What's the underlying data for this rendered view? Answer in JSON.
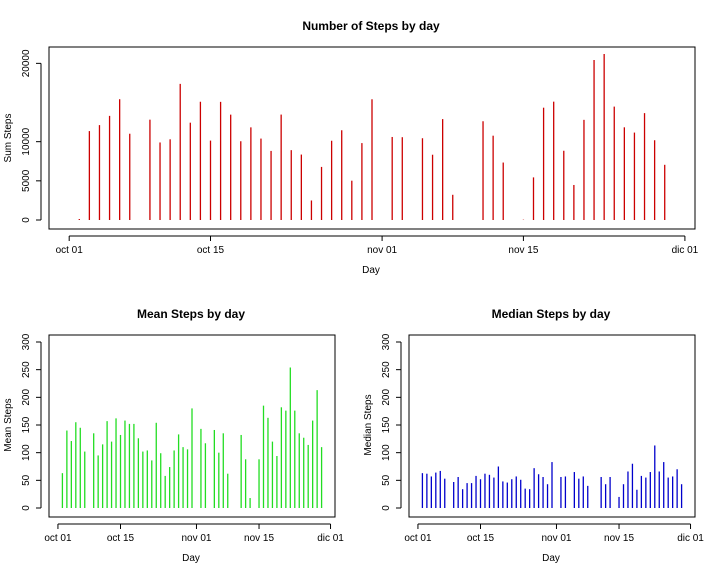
{
  "chart_data": [
    {
      "type": "bar",
      "title": "Number of Steps by day",
      "xlabel": "Day",
      "ylabel": "Sum Steps",
      "color": "#cc0000",
      "x_ticks": [
        "oct 01",
        "oct 15",
        "nov 01",
        "nov 15",
        "dic 01"
      ],
      "y_ticks": [
        0,
        5000,
        10000,
        20000
      ],
      "ylim": [
        0,
        21194
      ],
      "x": [
        "2012-10-02",
        "2012-10-03",
        "2012-10-04",
        "2012-10-05",
        "2012-10-06",
        "2012-10-07",
        "2012-10-09",
        "2012-10-10",
        "2012-10-11",
        "2012-10-12",
        "2012-10-13",
        "2012-10-14",
        "2012-10-15",
        "2012-10-16",
        "2012-10-17",
        "2012-10-18",
        "2012-10-19",
        "2012-10-20",
        "2012-10-21",
        "2012-10-22",
        "2012-10-23",
        "2012-10-24",
        "2012-10-25",
        "2012-10-26",
        "2012-10-27",
        "2012-10-28",
        "2012-10-29",
        "2012-10-30",
        "2012-10-31",
        "2012-11-02",
        "2012-11-03",
        "2012-11-05",
        "2012-11-06",
        "2012-11-07",
        "2012-11-08",
        "2012-11-11",
        "2012-11-12",
        "2012-11-13",
        "2012-11-15",
        "2012-11-16",
        "2012-11-17",
        "2012-11-18",
        "2012-11-19",
        "2012-11-20",
        "2012-11-21",
        "2012-11-22",
        "2012-11-23",
        "2012-11-24",
        "2012-11-25",
        "2012-11-26",
        "2012-11-27",
        "2012-11-28",
        "2012-11-29"
      ],
      "values": [
        126,
        11352,
        12116,
        13294,
        15420,
        11015,
        12811,
        9900,
        10304,
        17382,
        12426,
        15098,
        10139,
        15084,
        13452,
        10056,
        11829,
        10395,
        8821,
        13460,
        8918,
        8355,
        2492,
        6778,
        10119,
        11458,
        5018,
        9819,
        15414,
        10600,
        10571,
        10439,
        8334,
        12883,
        3219,
        12608,
        10765,
        7336,
        41,
        5441,
        14339,
        15110,
        8841,
        4472,
        12787,
        20427,
        21194,
        14478,
        11834,
        11162,
        13646,
        10183,
        7047
      ]
    },
    {
      "type": "bar",
      "title": "Mean Steps by day",
      "xlabel": "Day",
      "ylabel": "Mean Steps",
      "color": "#22dd22",
      "x_ticks": [
        "oct 01",
        "oct 15",
        "nov 01",
        "nov 15",
        "dic 01"
      ],
      "y_ticks": [
        0,
        50,
        100,
        150,
        200,
        250,
        300
      ],
      "ylim": [
        0,
        300
      ],
      "x": [
        "2012-10-02",
        "2012-10-03",
        "2012-10-04",
        "2012-10-05",
        "2012-10-06",
        "2012-10-07",
        "2012-10-09",
        "2012-10-10",
        "2012-10-11",
        "2012-10-12",
        "2012-10-13",
        "2012-10-14",
        "2012-10-15",
        "2012-10-16",
        "2012-10-17",
        "2012-10-18",
        "2012-10-19",
        "2012-10-20",
        "2012-10-21",
        "2012-10-22",
        "2012-10-23",
        "2012-10-24",
        "2012-10-25",
        "2012-10-26",
        "2012-10-27",
        "2012-10-28",
        "2012-10-29",
        "2012-10-30",
        "2012-10-31",
        "2012-11-02",
        "2012-11-03",
        "2012-11-05",
        "2012-11-06",
        "2012-11-07",
        "2012-11-08",
        "2012-11-11",
        "2012-11-12",
        "2012-11-13",
        "2012-11-15",
        "2012-11-16",
        "2012-11-17",
        "2012-11-18",
        "2012-11-19",
        "2012-11-20",
        "2012-11-21",
        "2012-11-22",
        "2012-11-23",
        "2012-11-24",
        "2012-11-25",
        "2012-11-26",
        "2012-11-27",
        "2012-11-28",
        "2012-11-29"
      ],
      "values": [
        63,
        140,
        121,
        155,
        145,
        102,
        135,
        95,
        115,
        157,
        120,
        162,
        132,
        158,
        152,
        152,
        126,
        102,
        104,
        86,
        154,
        99,
        58,
        74,
        104,
        133,
        110,
        106,
        180,
        143,
        117,
        141,
        100,
        135,
        62,
        132,
        88,
        18,
        88,
        185,
        163,
        120,
        94,
        182,
        176,
        254,
        176,
        135,
        127,
        114,
        158,
        213,
        110
      ]
    },
    {
      "type": "bar",
      "title": "Median Steps by day",
      "xlabel": "Day",
      "ylabel": "Median Steps",
      "color": "#0000cc",
      "x_ticks": [
        "oct 01",
        "oct 15",
        "nov 01",
        "nov 15",
        "dic 01"
      ],
      "y_ticks": [
        0,
        50,
        100,
        150,
        200,
        250,
        300
      ],
      "ylim": [
        0,
        300
      ],
      "x": [
        "2012-10-02",
        "2012-10-03",
        "2012-10-04",
        "2012-10-05",
        "2012-10-06",
        "2012-10-07",
        "2012-10-09",
        "2012-10-10",
        "2012-10-11",
        "2012-10-12",
        "2012-10-13",
        "2012-10-14",
        "2012-10-15",
        "2012-10-16",
        "2012-10-17",
        "2012-10-18",
        "2012-10-19",
        "2012-10-20",
        "2012-10-21",
        "2012-10-22",
        "2012-10-23",
        "2012-10-24",
        "2012-10-25",
        "2012-10-26",
        "2012-10-27",
        "2012-10-28",
        "2012-10-29",
        "2012-10-30",
        "2012-10-31",
        "2012-11-02",
        "2012-11-03",
        "2012-11-05",
        "2012-11-06",
        "2012-11-07",
        "2012-11-08",
        "2012-11-11",
        "2012-11-12",
        "2012-11-13",
        "2012-11-15",
        "2012-11-16",
        "2012-11-17",
        "2012-11-18",
        "2012-11-19",
        "2012-11-20",
        "2012-11-21",
        "2012-11-22",
        "2012-11-23",
        "2012-11-24",
        "2012-11-25",
        "2012-11-26",
        "2012-11-27",
        "2012-11-28",
        "2012-11-29"
      ],
      "values": [
        63,
        62,
        57,
        64,
        67,
        53,
        47,
        56,
        34,
        45,
        45,
        58,
        52,
        62,
        60,
        55,
        75,
        48,
        46,
        52,
        57,
        51,
        35,
        34,
        72,
        61,
        56,
        43,
        83,
        56,
        57,
        65,
        53,
        57,
        40,
        56,
        43,
        56,
        20,
        43,
        66,
        80,
        33,
        58,
        55,
        65,
        113,
        66,
        83,
        55,
        57,
        70,
        43
      ]
    }
  ]
}
